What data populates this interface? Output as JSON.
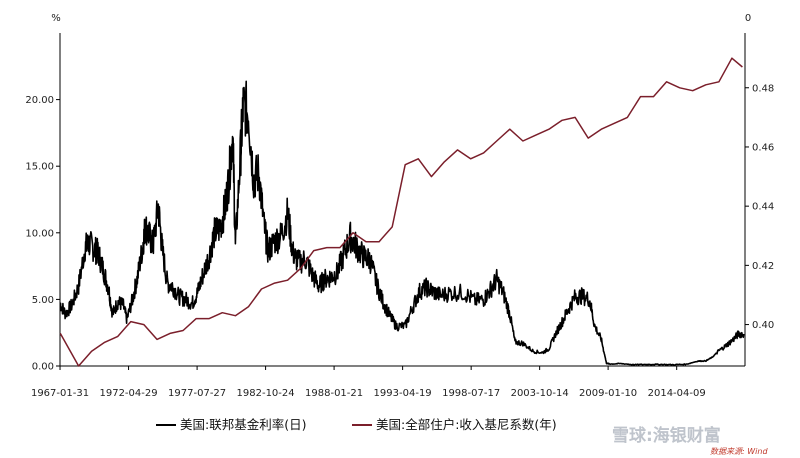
{
  "chart_data": {
    "type": "line",
    "left_axis_unit": "%",
    "right_axis_unit": "0",
    "x_ticks": [
      "1967-01-31",
      "1972-04-29",
      "1977-07-27",
      "1982-10-24",
      "1988-01-21",
      "1993-04-19",
      "1998-07-17",
      "2003-10-14",
      "2009-01-10",
      "2014-04-09"
    ],
    "x_range": [
      1967.08,
      2019.5
    ],
    "y_left_ticks": [
      "0.00",
      "5.00",
      "10.00",
      "15.00",
      "20.00"
    ],
    "y_left_range": [
      0,
      25
    ],
    "y_right_ticks": [
      "0.40",
      "0.42",
      "0.44",
      "0.46",
      "0.48"
    ],
    "y_right_range": [
      0.386,
      0.4985
    ],
    "series": [
      {
        "name": "美国:联邦基金利率(日)",
        "axis": "left",
        "color": "#000000",
        "x": [
          1967.1,
          1967.5,
          1968.0,
          1968.5,
          1969.0,
          1969.3,
          1969.7,
          1970.0,
          1970.4,
          1970.8,
          1971.1,
          1971.5,
          1971.9,
          1972.2,
          1972.6,
          1973.0,
          1973.4,
          1973.6,
          1973.9,
          1974.2,
          1974.6,
          1974.9,
          1975.3,
          1975.7,
          1976.2,
          1976.7,
          1977.2,
          1977.6,
          1978.0,
          1978.5,
          1978.9,
          1979.3,
          1979.7,
          1980.0,
          1980.3,
          1980.5,
          1980.9,
          1981.1,
          1981.5,
          1981.9,
          1982.3,
          1982.7,
          1983.0,
          1983.5,
          1984.0,
          1984.5,
          1984.9,
          1985.3,
          1985.9,
          1986.4,
          1986.9,
          1987.3,
          1987.8,
          1988.3,
          1988.8,
          1989.3,
          1989.8,
          1990.3,
          1990.8,
          1991.3,
          1991.8,
          1992.3,
          1992.8,
          1993.5,
          1994.1,
          1994.6,
          1995.1,
          1995.6,
          1996.2,
          1997.0,
          1998.0,
          1998.8,
          1999.5,
          2000.0,
          2000.5,
          2001.0,
          2001.5,
          2001.9,
          2002.5,
          2003.3,
          2004.0,
          2004.5,
          2005.0,
          2005.5,
          2006.0,
          2006.5,
          2007.0,
          2007.6,
          2008.0,
          2008.5,
          2008.9,
          2009.2,
          2010.0,
          2011.0,
          2012.0,
          2013.0,
          2014.0,
          2015.0,
          2015.9,
          2016.5,
          2017.0,
          2017.5,
          2018.0,
          2018.5,
          2019.0,
          2019.4
        ],
        "y": [
          4.7,
          3.9,
          4.6,
          6.0,
          8.9,
          9.2,
          8.8,
          8.5,
          7.2,
          5.8,
          3.9,
          4.8,
          4.6,
          3.5,
          4.9,
          6.6,
          8.9,
          10.5,
          9.8,
          9.0,
          12.0,
          8.8,
          6.2,
          6.0,
          5.2,
          5.0,
          4.7,
          5.5,
          6.8,
          8.3,
          10.0,
          10.3,
          11.8,
          14.0,
          17.5,
          9.0,
          16.0,
          19.5,
          19.0,
          14.0,
          14.5,
          10.5,
          8.6,
          9.4,
          9.8,
          11.5,
          8.5,
          7.8,
          8.0,
          6.8,
          6.0,
          6.5,
          6.7,
          7.0,
          8.4,
          9.7,
          8.9,
          8.2,
          8.0,
          6.2,
          4.8,
          3.8,
          3.0,
          3.0,
          4.5,
          5.6,
          5.9,
          5.6,
          5.3,
          5.5,
          5.5,
          4.9,
          5.0,
          5.7,
          6.5,
          5.5,
          3.9,
          1.8,
          1.7,
          1.1,
          1.0,
          1.3,
          2.4,
          3.3,
          4.3,
          5.2,
          5.25,
          5.0,
          3.0,
          2.0,
          0.2,
          0.15,
          0.18,
          0.1,
          0.12,
          0.12,
          0.1,
          0.13,
          0.37,
          0.38,
          0.66,
          1.15,
          1.5,
          1.9,
          2.4,
          2.4
        ]
      },
      {
        "name": "美国:全部住户:收入基尼系数(年)",
        "axis": "right",
        "color": "#7b1f2b",
        "x": [
          1967.1,
          1968.5,
          1969.5,
          1970.5,
          1971.5,
          1972.5,
          1973.5,
          1974.5,
          1975.5,
          1976.5,
          1977.5,
          1978.5,
          1979.5,
          1980.5,
          1981.5,
          1982.5,
          1983.5,
          1984.5,
          1985.5,
          1986.5,
          1987.5,
          1988.5,
          1989.5,
          1990.5,
          1991.5,
          1992.5,
          1993.5,
          1994.5,
          1995.5,
          1996.5,
          1997.5,
          1998.5,
          1999.5,
          2000.5,
          2001.5,
          2002.5,
          2003.5,
          2004.5,
          2005.5,
          2006.5,
          2007.5,
          2008.5,
          2009.5,
          2010.5,
          2011.5,
          2012.5,
          2013.5,
          2014.5,
          2015.5,
          2016.5,
          2017.5,
          2018.5,
          2019.3
        ],
        "y": [
          0.397,
          0.386,
          0.391,
          0.394,
          0.396,
          0.401,
          0.4,
          0.395,
          0.397,
          0.398,
          0.402,
          0.402,
          0.404,
          0.403,
          0.406,
          0.412,
          0.414,
          0.415,
          0.419,
          0.425,
          0.426,
          0.426,
          0.431,
          0.428,
          0.428,
          0.433,
          0.454,
          0.456,
          0.45,
          0.455,
          0.459,
          0.456,
          0.458,
          0.462,
          0.466,
          0.462,
          0.464,
          0.466,
          0.469,
          0.47,
          0.463,
          0.466,
          0.468,
          0.47,
          0.477,
          0.477,
          0.482,
          0.48,
          0.479,
          0.481,
          0.482,
          0.49,
          0.487
        ]
      }
    ],
    "grid": false,
    "legend_position": "bottom"
  },
  "legend": {
    "items": [
      "美国:联邦基金利率(日)",
      "美国:全部住户:收入基尼系数(年)"
    ]
  },
  "source_note": "数据来源: Wind",
  "watermark": "雪球:海银财富"
}
